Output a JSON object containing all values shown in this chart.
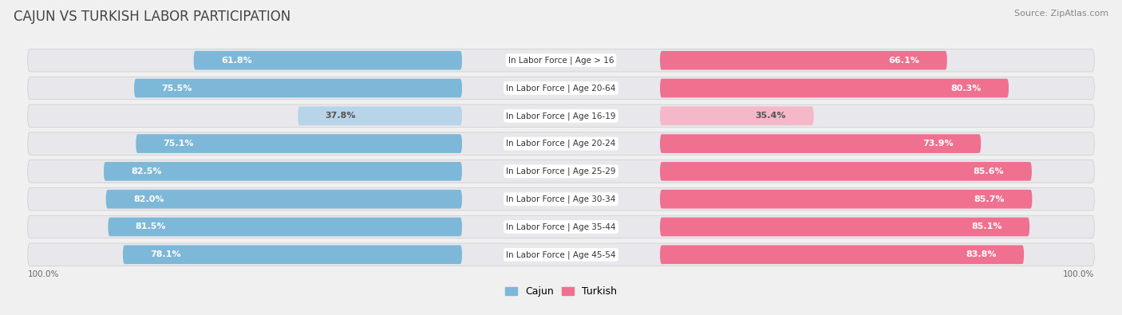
{
  "title": "CAJUN VS TURKISH LABOR PARTICIPATION",
  "source": "Source: ZipAtlas.com",
  "categories": [
    "In Labor Force | Age > 16",
    "In Labor Force | Age 20-64",
    "In Labor Force | Age 16-19",
    "In Labor Force | Age 20-24",
    "In Labor Force | Age 25-29",
    "In Labor Force | Age 30-34",
    "In Labor Force | Age 35-44",
    "In Labor Force | Age 45-54"
  ],
  "cajun_values": [
    61.8,
    75.5,
    37.8,
    75.1,
    82.5,
    82.0,
    81.5,
    78.1
  ],
  "turkish_values": [
    66.1,
    80.3,
    35.4,
    73.9,
    85.6,
    85.7,
    85.1,
    83.8
  ],
  "cajun_color": "#7EB8D8",
  "cajun_color_light": "#B8D4E8",
  "turkish_color": "#F07090",
  "turkish_color_light": "#F5B8C8",
  "row_bg_color": "#e8e8ec",
  "background_color": "#f0f0f0",
  "max_value": 100.0,
  "legend_cajun": "Cajun",
  "legend_turkish": "Turkish",
  "title_fontsize": 12,
  "source_fontsize": 8,
  "label_fontsize": 7.5,
  "value_fontsize": 8
}
